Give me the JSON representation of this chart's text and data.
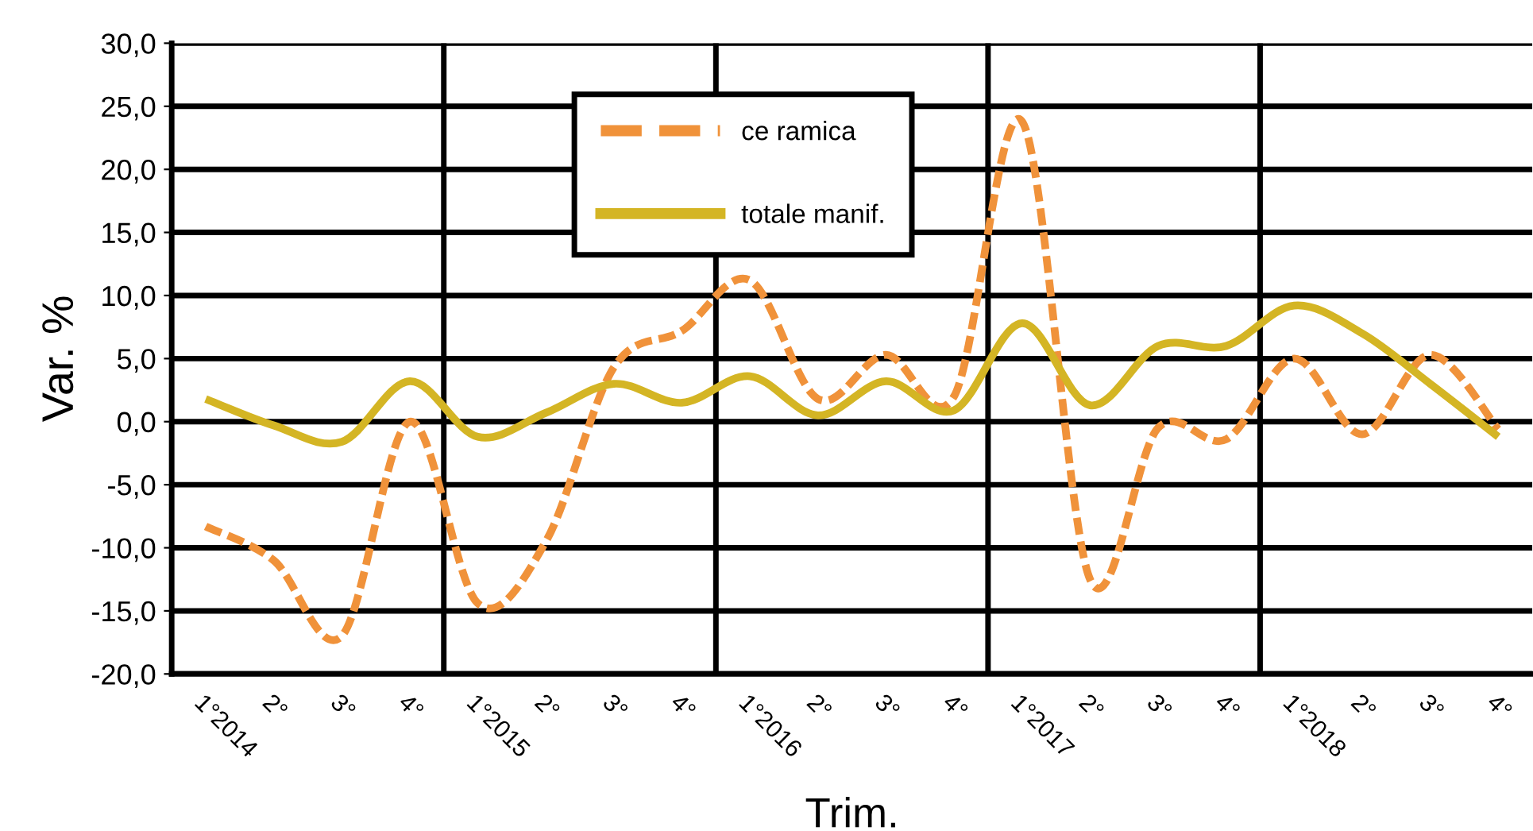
{
  "chart_data": {
    "type": "line",
    "xlabel": "Trim.",
    "ylabel": "Var. %",
    "categories": [
      "1°2014",
      "2°",
      "3°",
      "4°",
      "1°2015",
      "2°",
      "3°",
      "4°",
      "1°2016",
      "2°",
      "3°",
      "4°",
      "1°2017",
      "2°",
      "3°",
      "4°",
      "1°2018",
      "2°",
      "3°",
      "4°"
    ],
    "series": [
      {
        "name": "ce ramica",
        "color": "#f0923a",
        "line_style": "dashed",
        "values": [
          -8.3,
          -11.0,
          -17.0,
          0.0,
          -14.4,
          -9.5,
          4.3,
          7.2,
          11.2,
          1.8,
          5.3,
          2.0,
          23.8,
          -12.5,
          -0.5,
          -1.4,
          5.0,
          -1.0,
          5.3,
          -0.6
        ]
      },
      {
        "name": "totale manif.",
        "color": "#d4b524",
        "line_style": "solid",
        "values": [
          1.8,
          -0.3,
          -1.6,
          3.2,
          -1.2,
          0.7,
          3.0,
          1.5,
          3.6,
          0.5,
          3.2,
          0.9,
          7.8,
          1.3,
          6.0,
          6.0,
          9.2,
          7.0,
          3.0,
          -1.2
        ]
      }
    ],
    "ylim": [
      -20,
      30
    ],
    "yticks": [
      {
        "value": -20,
        "label": "-20,0"
      },
      {
        "value": -15,
        "label": "-15,0"
      },
      {
        "value": -10,
        "label": "-10,0"
      },
      {
        "value": -5,
        "label": "-5,0"
      },
      {
        "value": 0,
        "label": "0,0"
      },
      {
        "value": 5,
        "label": "5,0"
      },
      {
        "value": 10,
        "label": "10,0"
      },
      {
        "value": 15,
        "label": "15,0"
      },
      {
        "value": 20,
        "label": "20,0"
      },
      {
        "value": 25,
        "label": "25,0"
      },
      {
        "value": 30,
        "label": "30,0"
      }
    ],
    "grid": true,
    "legend": "top",
    "marker": "none"
  }
}
